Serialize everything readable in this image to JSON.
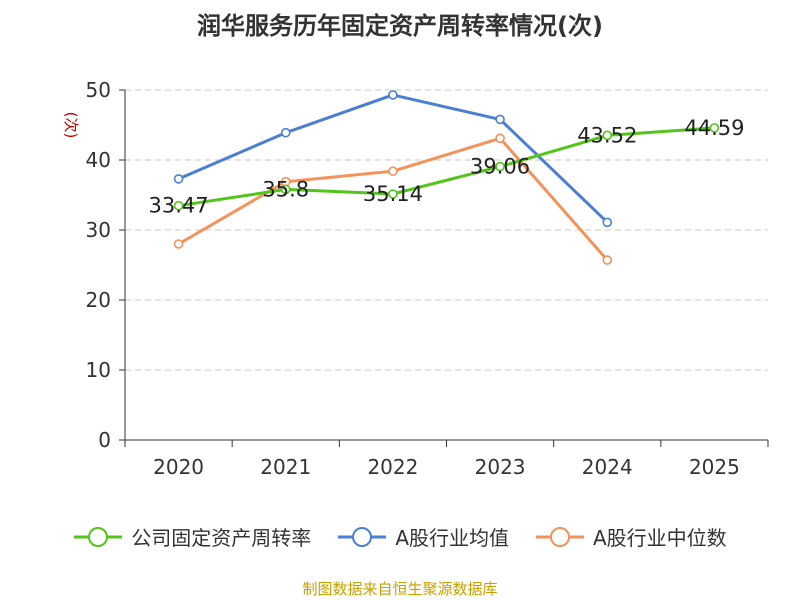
{
  "chart_data": {
    "type": "line",
    "title": "润华服务历年固定资产周转率情况(次)",
    "ylabel": "(次)",
    "xlabel": "",
    "categories": [
      "2020",
      "2021",
      "2022",
      "2023",
      "2024",
      "2025"
    ],
    "ylim": [
      0,
      50
    ],
    "yticks": [
      0,
      10,
      20,
      30,
      40,
      50
    ],
    "grid": true,
    "legend_position": "bottom",
    "series": [
      {
        "name": "公司固定资产周转率",
        "color": "#52c41a",
        "values": [
          33.47,
          35.8,
          35.14,
          39.06,
          43.52,
          44.59
        ],
        "labels": [
          "33.47",
          "35.8",
          "35.14",
          "39.06",
          "43.52",
          "44.59"
        ]
      },
      {
        "name": "A股行业均值",
        "color": "#4a7fd4",
        "values": [
          37.3,
          43.9,
          49.3,
          45.8,
          31.1,
          null
        ]
      },
      {
        "name": "A股行业中位数",
        "color": "#f4925a",
        "values": [
          28.0,
          36.9,
          38.4,
          43.1,
          25.7,
          null
        ]
      }
    ],
    "source": "制图数据来自恒生聚源数据库"
  }
}
